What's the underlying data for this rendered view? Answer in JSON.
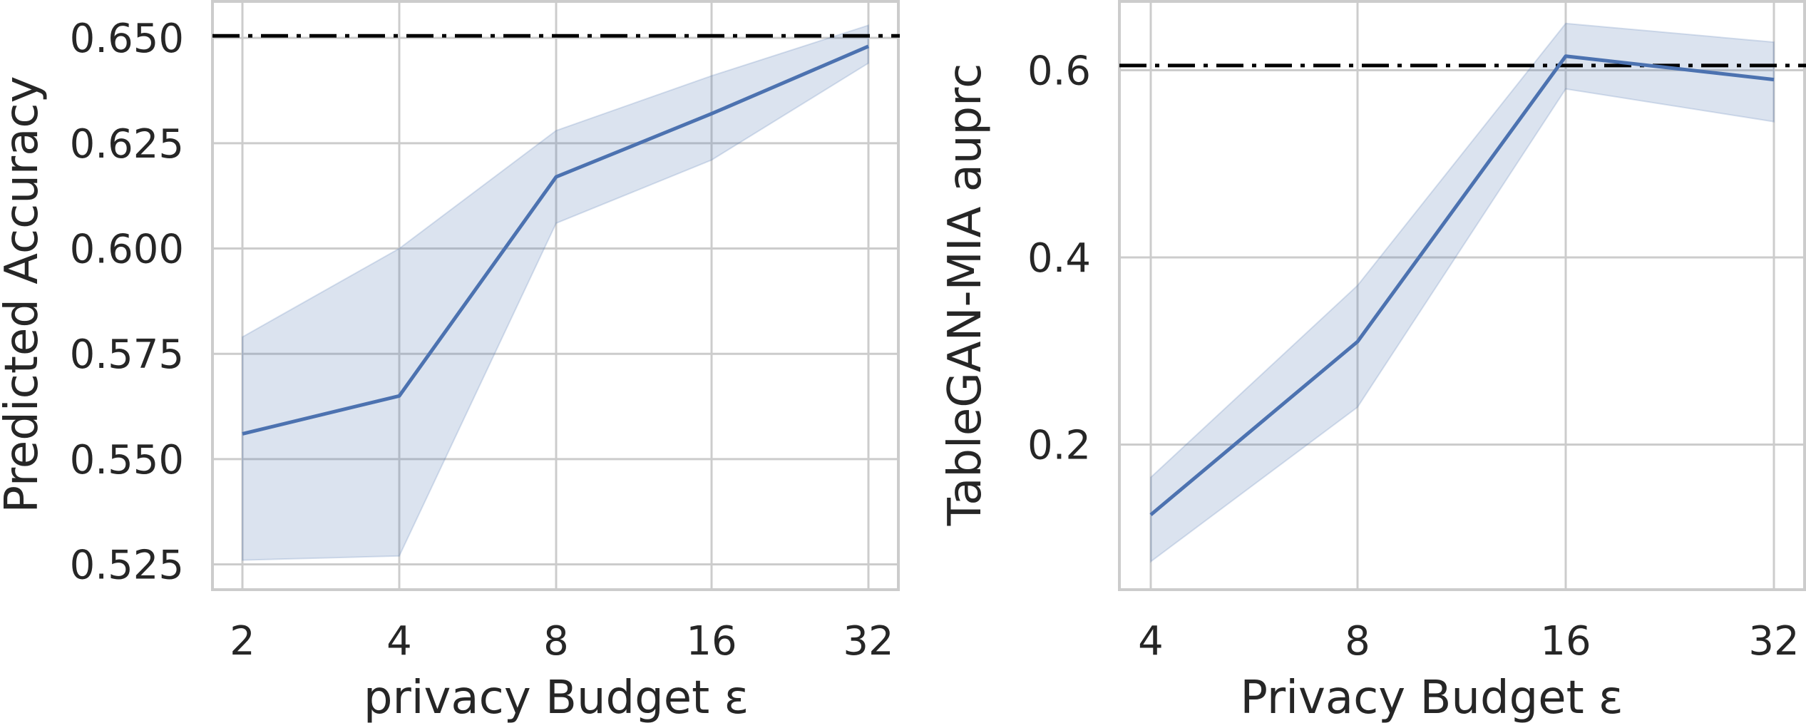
{
  "chart_data": [
    {
      "type": "line",
      "xlabel": "privacy Budget ε",
      "ylabel": "Predicted Accuracy",
      "x_ticks": [
        "2",
        "4",
        "8",
        "16",
        "32"
      ],
      "y_ticks": [
        "0.525",
        "0.550",
        "0.575",
        "0.600",
        "0.625",
        "0.650"
      ],
      "ylim": [
        0.519,
        0.659
      ],
      "y_tick_values": [
        0.525,
        0.55,
        0.575,
        0.6,
        0.625,
        0.65
      ],
      "x": [
        2,
        4,
        8,
        16,
        32
      ],
      "series": [
        {
          "values": [
            0.556,
            0.565,
            0.617,
            0.632,
            0.648
          ],
          "lower": [
            0.526,
            0.527,
            0.606,
            0.621,
            0.644
          ],
          "upper": [
            0.579,
            0.6,
            0.628,
            0.641,
            0.653
          ],
          "color": "#4c72b0"
        }
      ],
      "reference_line": {
        "y": 0.6505,
        "color": "#000000",
        "style": "dash-dot"
      },
      "grid": true
    },
    {
      "type": "line",
      "xlabel": "Privacy Budget ε",
      "ylabel": "TableGAN-MIA auprc",
      "x_ticks": [
        "4",
        "8",
        "16",
        "32"
      ],
      "y_ticks": [
        "0.2",
        "0.4",
        "0.6"
      ],
      "ylim": [
        0.045,
        0.675
      ],
      "y_tick_values": [
        0.2,
        0.4,
        0.6
      ],
      "x": [
        4,
        8,
        16,
        32
      ],
      "series": [
        {
          "values": [
            0.125,
            0.31,
            0.615,
            0.59
          ],
          "lower": [
            0.075,
            0.24,
            0.58,
            0.545
          ],
          "upper": [
            0.165,
            0.37,
            0.65,
            0.63
          ],
          "color": "#4c72b0"
        }
      ],
      "reference_line": {
        "y": 0.605,
        "color": "#000000",
        "style": "dash-dot"
      },
      "grid": true
    }
  ]
}
